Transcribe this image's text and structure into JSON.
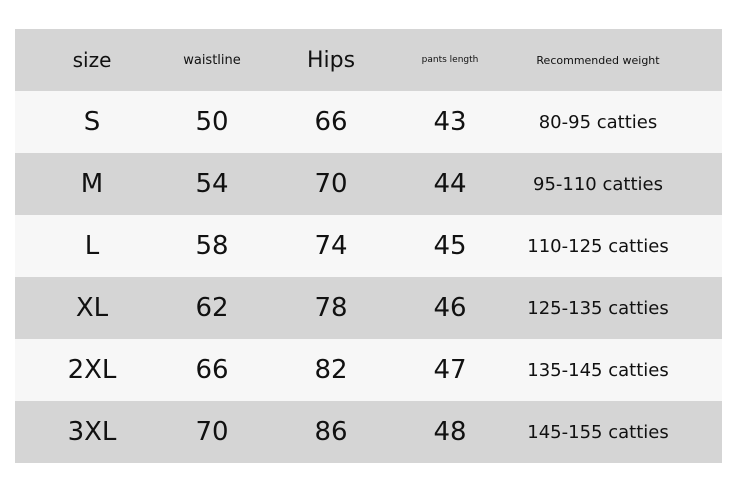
{
  "table": {
    "header": [
      "size",
      "waistline",
      "Hips",
      "pants length",
      "Recommended weight"
    ],
    "rows": [
      [
        "S",
        "50",
        "66",
        "43",
        "80-95 catties"
      ],
      [
        "M",
        "54",
        "70",
        "44",
        "95-110 catties"
      ],
      [
        "L",
        "58",
        "74",
        "45",
        "110-125 catties"
      ],
      [
        "XL",
        "62",
        "78",
        "46",
        "125-135 catties"
      ],
      [
        "2XL",
        "66",
        "82",
        "47",
        "135-145 catties"
      ],
      [
        "3XL",
        "70",
        "86",
        "48",
        "145-155 catties"
      ]
    ]
  }
}
